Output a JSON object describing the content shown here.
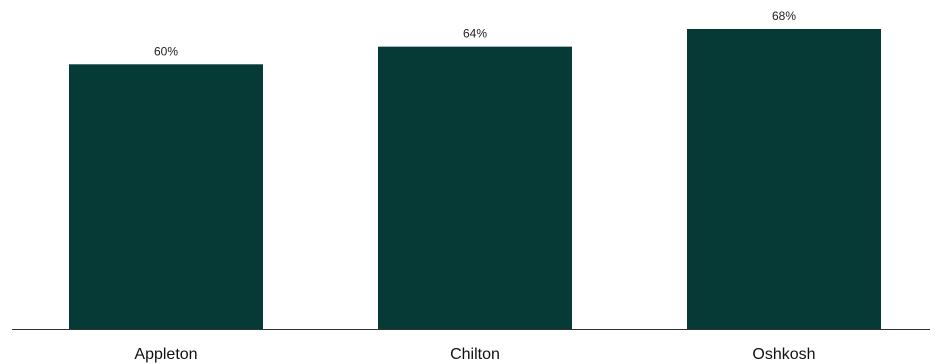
{
  "chart_data": {
    "type": "bar",
    "categories": [
      "Appleton",
      "Chilton",
      "Oshkosh"
    ],
    "values": [
      60,
      64,
      68
    ],
    "data_labels": [
      "60%",
      "64%",
      "68%"
    ],
    "title": "",
    "xlabel": "",
    "ylabel": "",
    "ylim": [
      0,
      68
    ],
    "grid": false,
    "legend": "none",
    "colors": {
      "bar": "#053a36",
      "axis": "#333333",
      "label_text": "#222222",
      "tick_text": "#111111"
    }
  }
}
